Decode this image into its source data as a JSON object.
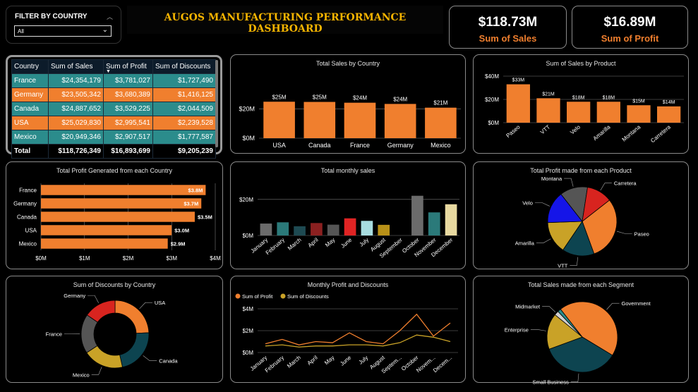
{
  "filter": {
    "label": "FILTER BY COUNTRY",
    "value": "All"
  },
  "title": "AUGOS MANUFACTURING PERFORMANCE DASHBOARD",
  "kpis": [
    {
      "value": "$118.73M",
      "label": "Sum of  Sales"
    },
    {
      "value": "$16.89M",
      "label": "Sum of Profit"
    }
  ],
  "colors": {
    "orange": "#f07f2e",
    "teal": "#2b8c8c",
    "navy": "#0c1b2a",
    "gold": "#c9a227",
    "dark_teal": "#0d4450",
    "gray": "#555555",
    "blue": "#1515e8",
    "red": "#d8241f"
  },
  "table": {
    "headers": [
      "Country",
      "Sum of Sales",
      "Sum of Profit",
      "Sum of Discounts"
    ],
    "rows": [
      [
        "France",
        "$24,354,179",
        "$3,781,027",
        "$1,727,490"
      ],
      [
        "Germany",
        "$23,505,342",
        "$3,680,389",
        "$1,416,125"
      ],
      [
        "Canada",
        "$24,887,652",
        "$3,529,225",
        "$2,044,509"
      ],
      [
        "USA",
        "$25,029,830",
        "$2,995,541",
        "$2,239,528"
      ],
      [
        "Mexico",
        "$20,949,346",
        "$2,907,517",
        "$1,777,587"
      ]
    ],
    "total": [
      "Total",
      "$118,726,349",
      "$16,893,699",
      "$9,205,239"
    ],
    "row_colors": [
      "#2b8c8c",
      "#f07f2e",
      "#2b8c8c",
      "#f07f2e",
      "#2b8c8c"
    ]
  },
  "chart_data": [
    {
      "id": "sales_country",
      "type": "bar",
      "title": "Total Sales by Country",
      "categories": [
        "USA",
        "Canada",
        "France",
        "Germany",
        "Mexico"
      ],
      "values": [
        25.03,
        24.89,
        24.35,
        23.51,
        20.95
      ],
      "data_labels": [
        "$25M",
        "$25M",
        "$24M",
        "$24M",
        "$21M"
      ],
      "ylim": [
        0,
        30
      ],
      "yticks": [
        {
          "v": 0,
          "label": "$0M"
        },
        {
          "v": 20,
          "label": "$20M"
        }
      ],
      "color": "#f07f2e",
      "grid": true
    },
    {
      "id": "sales_product",
      "type": "bar",
      "title": "Sum of  Sales by Product",
      "categories": [
        "Paseo",
        "VTT",
        "Velo",
        "Amarilla",
        "Montana",
        "Carretera"
      ],
      "values": [
        33,
        21,
        18,
        18,
        15,
        14
      ],
      "data_labels": [
        "$33M",
        "$21M",
        "$18M",
        "$18M",
        "$15M",
        "$14M"
      ],
      "ylim": [
        0,
        40
      ],
      "yticks": [
        {
          "v": 0,
          "label": "$0M"
        },
        {
          "v": 20,
          "label": "$20M"
        },
        {
          "v": 40,
          "label": "$40M"
        }
      ],
      "color": "#f07f2e",
      "grid": true
    },
    {
      "id": "profit_country",
      "type": "bar",
      "orientation": "horizontal",
      "title": "Total Profit Generated from each Country",
      "categories": [
        "France",
        "Germany",
        "Canada",
        "USA",
        "Mexico"
      ],
      "values": [
        3.78,
        3.68,
        3.53,
        3.0,
        2.91
      ],
      "data_labels": [
        "$3.8M",
        "$3.7M",
        "$3.5M",
        "$3.0M",
        "$2.9M"
      ],
      "xlim": [
        0,
        4
      ],
      "xticks": [
        {
          "v": 0,
          "label": "$0M"
        },
        {
          "v": 1,
          "label": "$1M"
        },
        {
          "v": 2,
          "label": "$2M"
        },
        {
          "v": 3,
          "label": "$3M"
        },
        {
          "v": 4,
          "label": "$4M"
        }
      ],
      "color": "#f07f2e"
    },
    {
      "id": "monthly_sales",
      "type": "bar",
      "title": "Total monthly sales",
      "categories": [
        "January",
        "February",
        "March",
        "April",
        "May",
        "June",
        "July",
        "August",
        "September",
        "October",
        "November",
        "December"
      ],
      "values": [
        6.6,
        7.3,
        5.1,
        6.9,
        6.0,
        9.5,
        8.1,
        5.9,
        0,
        22.0,
        12.8,
        17.3
      ],
      "colors": [
        "#6b6b6b",
        "#2b7a7a",
        "#1e4a52",
        "#8b2020",
        "#555555",
        "#e02424",
        "#a8dde0",
        "#b89118",
        "#333333",
        "#6b6b6b",
        "#2b7a7a",
        "#e8d9a0"
      ],
      "ylim": [
        0,
        25
      ],
      "yticks": [
        {
          "v": 0,
          "label": "$0M"
        },
        {
          "v": 20,
          "label": "$20M"
        }
      ],
      "grid": true
    },
    {
      "id": "profit_product",
      "type": "pie",
      "title": "Total Profit made from each Product",
      "slices": [
        {
          "label": "Paseo",
          "value": 30.0,
          "color": "#f07f2e"
        },
        {
          "label": "VTT",
          "value": 15.0,
          "color": "#0d4450"
        },
        {
          "label": "Amarilla",
          "value": 15.0,
          "color": "#c9a227"
        },
        {
          "label": "Velo",
          "value": 15.0,
          "color": "#1515e8"
        },
        {
          "label": "Montana",
          "value": 13.0,
          "color": "#555555"
        },
        {
          "label": "Carretera",
          "value": 12.0,
          "color": "#d8241f"
        }
      ]
    },
    {
      "id": "discounts_country",
      "type": "pie",
      "donut": true,
      "title": "Sum of Discounts by Country",
      "slices": [
        {
          "label": "USA",
          "value": 2.24,
          "color": "#f07f2e"
        },
        {
          "label": "Canada",
          "value": 2.04,
          "color": "#0d4450"
        },
        {
          "label": "Mexico",
          "value": 1.78,
          "color": "#c9a227"
        },
        {
          "label": "France",
          "value": 1.73,
          "color": "#555555"
        },
        {
          "label": "Germany",
          "value": 1.42,
          "color": "#d8241f"
        }
      ]
    },
    {
      "id": "monthly_profit_discounts",
      "type": "line",
      "title": "Monthly Profit  and Discounts",
      "categories": [
        "January",
        "February",
        "March",
        "April",
        "May",
        "June",
        "July",
        "August",
        "Septem...",
        "October",
        "Novem...",
        "Decem..."
      ],
      "series": [
        {
          "name": "Sum of Profit",
          "color": "#f07f2e",
          "values": [
            0.8,
            1.2,
            0.7,
            1.0,
            0.9,
            1.8,
            1.0,
            0.8,
            2.0,
            3.5,
            1.5,
            2.7
          ]
        },
        {
          "name": "Sum of Discounts",
          "color": "#c9a227",
          "values": [
            0.6,
            0.7,
            0.5,
            0.6,
            0.6,
            0.7,
            0.7,
            0.6,
            0.9,
            1.6,
            1.4,
            1.0
          ]
        }
      ],
      "ylim": [
        0,
        4
      ],
      "yticks": [
        {
          "v": 0,
          "label": "$0M"
        },
        {
          "v": 2,
          "label": "$2M"
        },
        {
          "v": 4,
          "label": "$4M"
        }
      ],
      "grid": true,
      "legend": "top-left"
    },
    {
      "id": "sales_segment",
      "type": "pie",
      "title": "Total Sales made from each Segment",
      "slices": [
        {
          "label": "Government",
          "value": 52.5,
          "color": "#f07f2e"
        },
        {
          "label": "Small Business",
          "value": 42.4,
          "color": "#0d4450"
        },
        {
          "label": "Enterprise",
          "value": 19.6,
          "color": "#c9a227"
        },
        {
          "label": "Midmarket",
          "value": 2.4,
          "color": "#d0d0d0"
        },
        {
          "label": "",
          "value": 1.8,
          "color": "#2b8c8c"
        }
      ]
    }
  ]
}
